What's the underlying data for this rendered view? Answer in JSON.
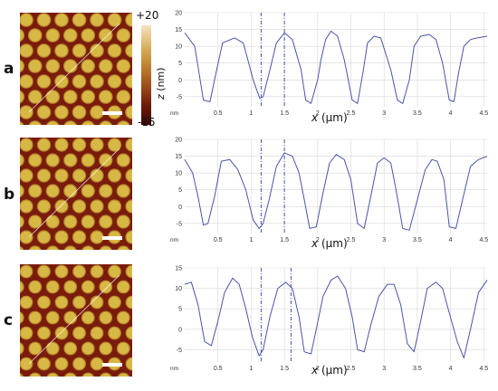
{
  "colorbar": {
    "max_label": "+20",
    "min_label": "-15",
    "axis_label_var": "z",
    "axis_label_unit": "(nm)"
  },
  "colors": {
    "line": "#4a55a8",
    "grid": "#d8d8d8",
    "afm_background": "#7a1c0c",
    "afm_dot": "#d8b844"
  },
  "chart_data": [
    {
      "type": "line",
      "panel": "a",
      "xlabel_var": "x",
      "xlabel_unit": "(µm)",
      "x_unit_label": "nm",
      "xlim": [
        0,
        4.55
      ],
      "ylim": [
        -8,
        20
      ],
      "yticks": [
        -5,
        0,
        5,
        10,
        15,
        20
      ],
      "xticks": [
        "0.5",
        "1",
        "1.5",
        "2",
        "2.5",
        "3",
        "3.5",
        "4",
        "4.5"
      ],
      "markers": [
        1.15,
        1.5
      ],
      "x": [
        0,
        0.15,
        0.2,
        0.28,
        0.38,
        0.47,
        0.57,
        0.75,
        0.88,
        0.95,
        1.03,
        1.13,
        1.18,
        1.27,
        1.38,
        1.5,
        1.62,
        1.75,
        1.82,
        1.9,
        2.0,
        2.05,
        2.12,
        2.2,
        2.3,
        2.4,
        2.52,
        2.6,
        2.68,
        2.75,
        2.85,
        2.95,
        3.1,
        3.2,
        3.28,
        3.38,
        3.45,
        3.55,
        3.68,
        3.78,
        3.88,
        3.98,
        4.05,
        4.12,
        4.2,
        4.3,
        4.4,
        4.55
      ],
      "values": [
        14,
        10,
        4,
        -6,
        -6.5,
        2,
        11,
        12.5,
        11,
        6,
        0,
        -5.5,
        -5,
        2,
        11,
        14,
        12,
        3,
        -6,
        -7,
        0,
        6,
        12,
        14.5,
        13,
        6,
        -6,
        -7,
        2,
        11,
        13,
        12.5,
        3,
        -6,
        -7,
        0,
        10,
        13,
        13.5,
        12,
        5,
        -6,
        -6.5,
        2,
        10,
        12,
        12.5,
        13
      ]
    },
    {
      "type": "line",
      "panel": "b",
      "xlabel_var": "x",
      "xlabel_unit": "(µm)",
      "x_unit_label": "nm",
      "xlim": [
        0,
        4.55
      ],
      "ylim": [
        -8,
        20
      ],
      "yticks": [
        -5,
        0,
        5,
        10,
        15,
        20
      ],
      "xticks": [
        "0.5",
        "1",
        "1.5",
        "2",
        "2.5",
        "3",
        "3.5",
        "4",
        "4.5"
      ],
      "markers": [
        1.15,
        1.5
      ],
      "x": [
        0,
        0.12,
        0.2,
        0.28,
        0.35,
        0.45,
        0.55,
        0.68,
        0.8,
        0.92,
        1.03,
        1.12,
        1.18,
        1.27,
        1.38,
        1.5,
        1.62,
        1.72,
        1.8,
        1.88,
        1.98,
        2.08,
        2.18,
        2.28,
        2.4,
        2.5,
        2.6,
        2.7,
        2.8,
        2.9,
        3.0,
        3.1,
        3.18,
        3.28,
        3.38,
        3.5,
        3.62,
        3.72,
        3.8,
        3.9,
        3.98,
        4.08,
        4.18,
        4.3,
        4.42,
        4.55
      ],
      "values": [
        14,
        10,
        3,
        -5.5,
        -5,
        3,
        13.5,
        14,
        11,
        5,
        -4,
        -6.5,
        -5,
        2,
        12,
        16,
        15,
        10,
        2,
        -6.5,
        -6,
        4,
        13,
        15.5,
        14,
        8,
        -5,
        -6.5,
        3,
        13,
        14.5,
        13,
        5,
        -6.5,
        -7,
        2,
        11,
        14,
        13.5,
        8,
        -6,
        -6.5,
        2,
        12,
        14,
        15
      ]
    },
    {
      "type": "line",
      "panel": "c",
      "xlabel_var": "x",
      "xlabel_unit": "(µm)",
      "x_unit_label": "nm",
      "xlim": [
        0,
        4.55
      ],
      "ylim": [
        -8,
        15
      ],
      "yticks": [
        -5,
        0,
        5,
        10,
        15
      ],
      "xticks": [
        "0.5",
        "1",
        "1.5",
        "2",
        "2.5",
        "3",
        "3.5",
        "4",
        "4.5"
      ],
      "markers": [
        1.15,
        1.6
      ],
      "x": [
        0,
        0.1,
        0.2,
        0.3,
        0.4,
        0.5,
        0.6,
        0.72,
        0.82,
        0.92,
        1.02,
        1.12,
        1.18,
        1.28,
        1.4,
        1.52,
        1.62,
        1.72,
        1.8,
        1.9,
        1.98,
        2.08,
        2.2,
        2.3,
        2.42,
        2.52,
        2.6,
        2.7,
        2.8,
        2.92,
        3.05,
        3.15,
        3.25,
        3.35,
        3.45,
        3.55,
        3.65,
        3.78,
        3.88,
        3.98,
        4.1,
        4.2,
        4.3,
        4.42,
        4.55
      ],
      "values": [
        11,
        11.5,
        6,
        -3,
        -4,
        2,
        9,
        12.5,
        11,
        5,
        -2,
        -6.5,
        -5,
        3,
        10,
        11.5,
        10,
        3,
        -5.5,
        -6,
        0,
        8,
        12,
        13,
        10,
        3,
        -5,
        -5.5,
        1,
        8,
        11,
        11,
        6,
        -3.5,
        -5.5,
        2,
        10,
        11.5,
        10,
        4,
        -3,
        -7,
        0,
        9,
        12
      ]
    }
  ]
}
